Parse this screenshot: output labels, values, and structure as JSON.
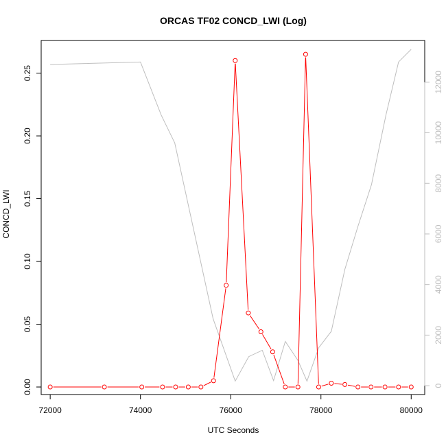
{
  "chart_data": {
    "type": "line",
    "title": "ORCAS TF02 CONCD_LWI (Log)",
    "xlabel": "UTC Seconds",
    "ylabel": "CONCD_LWI",
    "xlim": [
      71800,
      80300
    ],
    "ylim": [
      -0.006,
      0.276
    ],
    "y2lim": [
      -350,
      13650
    ],
    "x_ticks": [
      72000,
      74000,
      76000,
      78000,
      80000
    ],
    "y_ticks": [
      0.0,
      0.05,
      0.1,
      0.15,
      0.2,
      0.25
    ],
    "y_tick_labels": [
      "0.00",
      "0.05",
      "0.10",
      "0.15",
      "0.20",
      "0.25"
    ],
    "y2_ticks": [
      0,
      2000,
      4000,
      6000,
      8000,
      10000,
      12000
    ],
    "grid": false,
    "series": [
      {
        "role": "primary",
        "color": "#ff0000",
        "marker": "open-circle",
        "x": [
          72000,
          73200,
          74030,
          74490,
          74780,
          75060,
          75340,
          75620,
          75900,
          76100,
          76390,
          76670,
          76930,
          77210,
          77490,
          77660,
          77950,
          78230,
          78530,
          78820,
          79110,
          79420,
          79720,
          80000
        ],
        "y": [
          0.0,
          0.0,
          0.0,
          0.0,
          0.0,
          0.0,
          0.0,
          0.005,
          0.081,
          0.26,
          0.059,
          0.044,
          0.028,
          0.0,
          0.0,
          0.265,
          0.0,
          0.003,
          0.002,
          0.0,
          0.0,
          0.0,
          0.0,
          0.0
        ]
      },
      {
        "role": "secondary",
        "color": "#bebebe",
        "x": [
          72000,
          74000,
          74460,
          74760,
          75610,
          76100,
          76400,
          76700,
          76950,
          77210,
          77490,
          77690,
          77950,
          78230,
          78530,
          78820,
          79120,
          79440,
          79720,
          80000
        ],
        "y": [
          12700,
          12800,
          10700,
          9600,
          2650,
          180,
          1150,
          1400,
          200,
          1750,
          1000,
          180,
          1500,
          2150,
          4600,
          6300,
          7950,
          10700,
          12800,
          13300
        ]
      }
    ]
  }
}
